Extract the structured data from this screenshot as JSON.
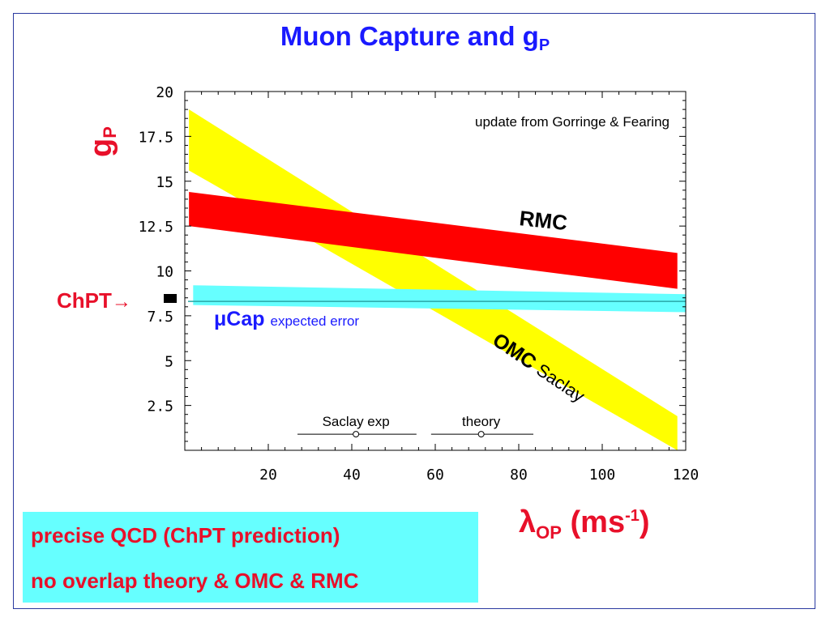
{
  "slide": {
    "title_main": "Muon Capture and g",
    "title_sub": "P",
    "notes": [
      "precise QCD (ChPT prediction)",
      "no overlap theory & OMC & RMC"
    ],
    "chpt_label": "ChPT",
    "chpt_arrow": "→",
    "ylabel_main": "g",
    "ylabel_sub": "P",
    "xlabel_main": "λ",
    "xlabel_sub": "OP",
    "xlabel_unit_open": " (ms",
    "xlabel_unit_sup": "-1",
    "xlabel_unit_close": ")"
  },
  "colors": {
    "title": "#1a1aff",
    "red_text": "#e8102a",
    "rmc_band": "#ff0000",
    "omc_band": "#ffff00",
    "mucap_band": "#66ffff",
    "mucap_line": "#2aa6a6",
    "mucap_text": "#1a1aff",
    "note_box": "#66ffff"
  },
  "chart_data": {
    "type": "area",
    "xlim": [
      0,
      120
    ],
    "ylim": [
      0,
      20
    ],
    "xticks": [
      "20",
      "40",
      "60",
      "80",
      "100",
      "120"
    ],
    "xtick_values": [
      20,
      40,
      60,
      80,
      100,
      120
    ],
    "yticks": [
      "20",
      "17.5",
      "15",
      "12.5",
      "10",
      "7.5",
      "5",
      "2.5"
    ],
    "ytick_values": [
      20,
      17.5,
      15,
      12.5,
      10,
      7.5,
      5,
      2.5
    ],
    "bands": [
      {
        "name": "OMC",
        "color": "#ffff00",
        "upper": [
          [
            1,
            19.0
          ],
          [
            118,
            1.9
          ]
        ],
        "lower": [
          [
            1,
            15.6
          ],
          [
            118,
            0
          ]
        ]
      },
      {
        "name": "RMC",
        "color": "#ff0000",
        "upper": [
          [
            1,
            14.4
          ],
          [
            118,
            11.0
          ]
        ],
        "lower": [
          [
            1,
            12.5
          ],
          [
            118,
            9.0
          ]
        ]
      },
      {
        "name": "μCap",
        "color": "#66ffff",
        "upper": [
          [
            2,
            9.2
          ],
          [
            120,
            8.7
          ]
        ],
        "lower": [
          [
            2,
            8.1
          ],
          [
            120,
            7.7
          ]
        ]
      }
    ],
    "chpt_line": 8.3,
    "annotations": {
      "update": "update from Gorringe & Fearing",
      "rmc": "RMC",
      "omc": "OMC",
      "saclay": "Saclay",
      "mucap": "μCap",
      "mucap_expected": "expected error"
    },
    "errorbars": [
      {
        "label": "Saclay exp",
        "center": 41,
        "min": 27,
        "max": 55.5,
        "y": 0.9,
        "marker": "o"
      },
      {
        "label": "theory",
        "center": 71,
        "min": 59,
        "max": 83.5,
        "y": 0.9,
        "marker": "o"
      }
    ]
  }
}
